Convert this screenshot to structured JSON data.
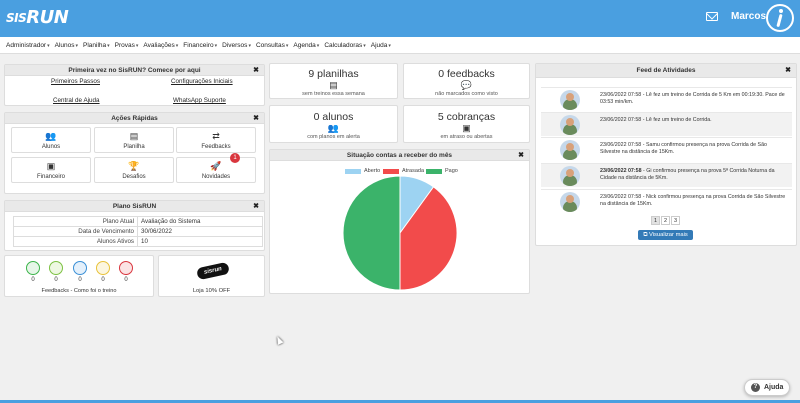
{
  "header": {
    "logo_prefix": "SIS",
    "logo_main": "RUN",
    "user_name": "Marcos"
  },
  "menu": [
    "Administrador",
    "Alunos",
    "Planilha",
    "Provas",
    "Avaliações",
    "Financeiro",
    "Diversos",
    "Consultas",
    "Agenda",
    "Calculadoras",
    "Ajuda"
  ],
  "first_time": {
    "title": "Primeira vez no SisRUN? Comece por aqui",
    "links": [
      "Primeiros Passos",
      "Configurações Iniciais",
      "Central de Ajuda",
      "WhatsApp Suporte"
    ]
  },
  "quick_actions": {
    "title": "Ações Rápidas",
    "items": [
      {
        "label": "Alunos",
        "icon": "users-icon",
        "glyph": "👥"
      },
      {
        "label": "Planilha",
        "icon": "id-card-icon",
        "glyph": "▤"
      },
      {
        "label": "Feedbacks",
        "icon": "exchange-icon",
        "glyph": "⇄"
      },
      {
        "label": "Financeiro",
        "icon": "money-icon",
        "glyph": "▣"
      },
      {
        "label": "Desafios",
        "icon": "trophy-icon",
        "glyph": "🏆"
      },
      {
        "label": "Novidades",
        "icon": "rocket-icon",
        "glyph": "🚀",
        "badge": "1"
      }
    ]
  },
  "plan": {
    "title": "Plano SisRUN",
    "rows": [
      {
        "key": "Plano Atual",
        "value": "Avaliação do Sistema"
      },
      {
        "key": "Data de Vencimento",
        "value": "30/06/2022"
      },
      {
        "key": "Alunos Ativos",
        "value": "10"
      }
    ]
  },
  "feedbacks": {
    "label": "Feedbacks - Como foi o treino",
    "counts": [
      "0",
      "0",
      "0",
      "0",
      "0"
    ],
    "colors": [
      "#3cb44b",
      "#7cc142",
      "#3a8fd6",
      "#e8c23a",
      "#d9363e"
    ]
  },
  "store": {
    "logo_text": "sisrun",
    "label": "Loja 10% OFF"
  },
  "stats": [
    {
      "value": "9 planilhas",
      "icon": "id-card-icon",
      "glyph": "▤",
      "label": "sem treinos essa semana"
    },
    {
      "value": "0 feedbacks",
      "icon": "comments-icon",
      "glyph": "💬",
      "label": "não marcados como visto"
    },
    {
      "value": "0 alunos",
      "icon": "users-icon",
      "glyph": "👥",
      "label": "com planos em alerta"
    },
    {
      "value": "5 cobranças",
      "icon": "money-icon",
      "glyph": "▣",
      "label": "em atraso ou abertas"
    }
  ],
  "chart_data": {
    "type": "pie",
    "title": "Situação contas a receber do mês",
    "legend": [
      "Aberto",
      "Atrasada",
      "Pago"
    ],
    "values": [
      10,
      40,
      50
    ],
    "colors": [
      "#9dd3f2",
      "#f24b4b",
      "#3bb36a"
    ]
  },
  "activity": {
    "title": "Feed de Atividades",
    "items": [
      {
        "date": "23/06/2022 07:58",
        "text": "Lê fez um treino de Corrida de 5 Km em 00:19:30. Pace de 03:53 min/km.",
        "alt": false,
        "bold": false
      },
      {
        "date": "23/06/2022 07:58",
        "text": "Lê fez um treino de Corrida.",
        "alt": true,
        "bold": false
      },
      {
        "date": "23/06/2022 07:58",
        "text": "Samu confirmou presença na prova Corrida de São Silvestre na distância de 15Km.",
        "alt": false,
        "bold": false
      },
      {
        "date": "23/06/2022 07:58",
        "text": "Gi confirmou presença na prova 5ª Corrida Noturna da Cidade na distância de 5Km.",
        "alt": true,
        "bold": true
      },
      {
        "date": "23/06/2022 07:58",
        "text": "Nick confirmou presença na prova Corrida de São Silvestre na distância de 15Km.",
        "alt": false,
        "bold": false
      }
    ],
    "pages": [
      "1",
      "2",
      "3"
    ],
    "view_more": "Visualizar mais"
  },
  "help_label": "Ajuda"
}
